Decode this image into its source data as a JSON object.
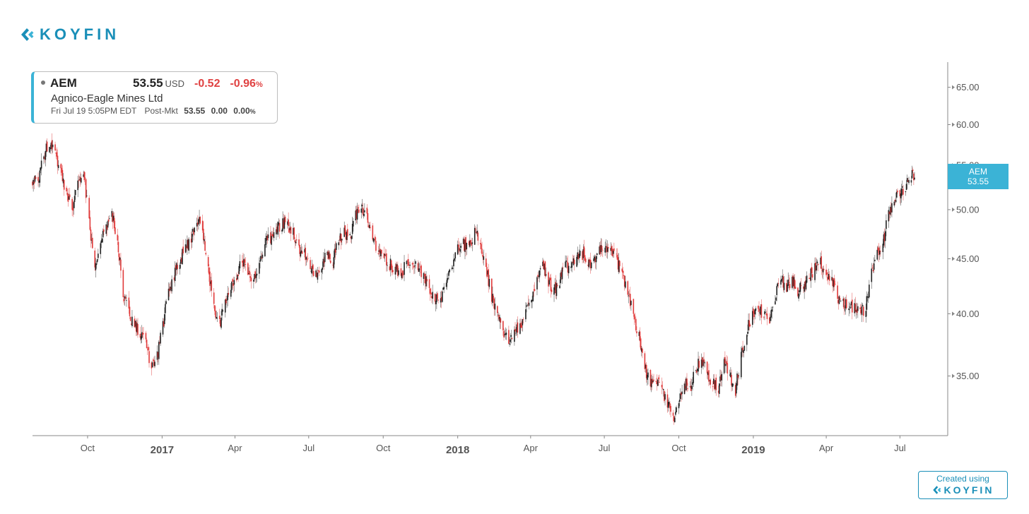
{
  "brand": {
    "name": "KOYFIN",
    "color": "#1a8fb8",
    "icon": "koyfin-chevron-icon"
  },
  "quote": {
    "ticker": "AEM",
    "price": "53.55",
    "currency": "USD",
    "change": "-0.52",
    "change_pct": "-0.96",
    "pct_unit": "%",
    "company": "Agnico-Eagle Mines Ltd",
    "timestamp": "Fri Jul 19 5:05PM EDT",
    "session_label": "Post-Mkt",
    "session_price": "53.55",
    "session_change": "0.00",
    "session_change_pct": "0.00",
    "down_color": "#e04242"
  },
  "footer": {
    "created_label": "Created using",
    "brand": "KOYFIN"
  },
  "chart_data": {
    "type": "candlestick",
    "series_name": "AEM",
    "last_label": {
      "ticker": "AEM",
      "value": "53.55",
      "color": "#3bb3d6"
    },
    "colors": {
      "up": "#222222",
      "down": "#e03a3a"
    },
    "y_scale": "log",
    "ylim": [
      30.8,
      68.6
    ],
    "y_ticks": [
      {
        "value": 35,
        "label": "35.00"
      },
      {
        "value": 40,
        "label": "40.00"
      },
      {
        "value": 45,
        "label": "45.00"
      },
      {
        "value": 50,
        "label": "50.00"
      },
      {
        "value": 55,
        "label": "55.00"
      },
      {
        "value": 60,
        "label": "60.00"
      },
      {
        "value": 65,
        "label": "65.00"
      }
    ],
    "xlim": [
      "2016-07-25",
      "2019-08-29"
    ],
    "x_ticks": [
      {
        "date": "2016-10-01",
        "label": "Oct",
        "bold": false
      },
      {
        "date": "2017-01-01",
        "label": "2017",
        "bold": true
      },
      {
        "date": "2017-04-01",
        "label": "Apr",
        "bold": false
      },
      {
        "date": "2017-07-01",
        "label": "Jul",
        "bold": false
      },
      {
        "date": "2017-10-01",
        "label": "Oct",
        "bold": false
      },
      {
        "date": "2018-01-01",
        "label": "2018",
        "bold": true
      },
      {
        "date": "2018-04-01",
        "label": "Apr",
        "bold": false
      },
      {
        "date": "2018-07-01",
        "label": "Jul",
        "bold": false
      },
      {
        "date": "2018-10-01",
        "label": "Oct",
        "bold": false
      },
      {
        "date": "2019-01-01",
        "label": "2019",
        "bold": true
      },
      {
        "date": "2019-04-01",
        "label": "Apr",
        "bold": false
      },
      {
        "date": "2019-07-01",
        "label": "Jul",
        "bold": false
      }
    ],
    "grid": false,
    "close_path": [
      [
        "2016-07-25",
        53.0
      ],
      [
        "2016-08-01",
        53.5
      ],
      [
        "2016-08-08",
        56.0
      ],
      [
        "2016-08-15",
        58.0
      ],
      [
        "2016-08-22",
        56.5
      ],
      [
        "2016-08-29",
        54.0
      ],
      [
        "2016-09-05",
        52.0
      ],
      [
        "2016-09-12",
        50.0
      ],
      [
        "2016-09-19",
        53.0
      ],
      [
        "2016-09-26",
        54.5
      ],
      [
        "2016-10-03",
        48.5
      ],
      [
        "2016-10-10",
        44.0
      ],
      [
        "2016-10-17",
        46.5
      ],
      [
        "2016-10-24",
        48.0
      ],
      [
        "2016-10-31",
        49.5
      ],
      [
        "2016-11-07",
        47.0
      ],
      [
        "2016-11-14",
        41.5
      ],
      [
        "2016-11-21",
        40.0
      ],
      [
        "2016-11-28",
        39.0
      ],
      [
        "2016-12-05",
        38.5
      ],
      [
        "2016-12-12",
        37.5
      ],
      [
        "2016-12-19",
        35.5
      ],
      [
        "2016-12-26",
        36.5
      ],
      [
        "2017-01-02",
        39.0
      ],
      [
        "2017-01-09",
        42.0
      ],
      [
        "2017-01-16",
        43.5
      ],
      [
        "2017-01-23",
        45.0
      ],
      [
        "2017-01-30",
        46.0
      ],
      [
        "2017-02-06",
        47.0
      ],
      [
        "2017-02-13",
        49.0
      ],
      [
        "2017-02-20",
        48.0
      ],
      [
        "2017-02-27",
        44.0
      ],
      [
        "2017-03-06",
        40.5
      ],
      [
        "2017-03-13",
        39.0
      ],
      [
        "2017-03-20",
        41.0
      ],
      [
        "2017-03-27",
        42.5
      ],
      [
        "2017-04-03",
        43.5
      ],
      [
        "2017-04-10",
        45.0
      ],
      [
        "2017-04-17",
        44.0
      ],
      [
        "2017-04-24",
        43.0
      ],
      [
        "2017-05-01",
        44.5
      ],
      [
        "2017-05-08",
        46.5
      ],
      [
        "2017-05-15",
        47.0
      ],
      [
        "2017-05-22",
        48.0
      ],
      [
        "2017-05-29",
        48.5
      ],
      [
        "2017-06-05",
        48.5
      ],
      [
        "2017-06-12",
        47.5
      ],
      [
        "2017-06-19",
        46.0
      ],
      [
        "2017-06-26",
        45.5
      ],
      [
        "2017-07-03",
        44.0
      ],
      [
        "2017-07-10",
        43.5
      ],
      [
        "2017-07-17",
        44.5
      ],
      [
        "2017-07-24",
        45.5
      ],
      [
        "2017-07-31",
        45.0
      ],
      [
        "2017-08-07",
        47.0
      ],
      [
        "2017-08-14",
        47.5
      ],
      [
        "2017-08-21",
        47.0
      ],
      [
        "2017-08-28",
        49.5
      ],
      [
        "2017-09-04",
        50.5
      ],
      [
        "2017-09-11",
        49.0
      ],
      [
        "2017-09-18",
        47.0
      ],
      [
        "2017-09-25",
        45.5
      ],
      [
        "2017-10-02",
        45.0
      ],
      [
        "2017-10-09",
        44.5
      ],
      [
        "2017-10-16",
        44.0
      ],
      [
        "2017-10-23",
        43.5
      ],
      [
        "2017-10-30",
        44.5
      ],
      [
        "2017-11-06",
        44.5
      ],
      [
        "2017-11-13",
        44.0
      ],
      [
        "2017-11-20",
        43.5
      ],
      [
        "2017-11-27",
        42.5
      ],
      [
        "2017-12-04",
        41.0
      ],
      [
        "2017-12-11",
        41.5
      ],
      [
        "2017-12-18",
        43.0
      ],
      [
        "2017-12-25",
        44.5
      ],
      [
        "2018-01-01",
        46.0
      ],
      [
        "2018-01-08",
        46.5
      ],
      [
        "2018-01-15",
        46.0
      ],
      [
        "2018-01-22",
        48.0
      ],
      [
        "2018-01-29",
        46.5
      ],
      [
        "2018-02-05",
        44.0
      ],
      [
        "2018-02-12",
        41.5
      ],
      [
        "2018-02-19",
        40.0
      ],
      [
        "2018-02-26",
        38.5
      ],
      [
        "2018-03-05",
        37.5
      ],
      [
        "2018-03-12",
        38.5
      ],
      [
        "2018-03-19",
        39.0
      ],
      [
        "2018-03-26",
        40.0
      ],
      [
        "2018-04-02",
        41.5
      ],
      [
        "2018-04-09",
        43.0
      ],
      [
        "2018-04-16",
        44.5
      ],
      [
        "2018-04-23",
        43.0
      ],
      [
        "2018-04-30",
        42.0
      ],
      [
        "2018-05-07",
        43.0
      ],
      [
        "2018-05-14",
        44.5
      ],
      [
        "2018-05-21",
        44.0
      ],
      [
        "2018-05-28",
        45.0
      ],
      [
        "2018-06-04",
        45.5
      ],
      [
        "2018-06-11",
        44.5
      ],
      [
        "2018-06-18",
        45.0
      ],
      [
        "2018-06-25",
        46.0
      ],
      [
        "2018-07-02",
        46.5
      ],
      [
        "2018-07-09",
        45.5
      ],
      [
        "2018-07-16",
        45.0
      ],
      [
        "2018-07-23",
        43.5
      ],
      [
        "2018-07-30",
        42.0
      ],
      [
        "2018-08-06",
        40.0
      ],
      [
        "2018-08-13",
        38.0
      ],
      [
        "2018-08-20",
        35.5
      ],
      [
        "2018-08-27",
        34.5
      ],
      [
        "2018-09-03",
        35.0
      ],
      [
        "2018-09-10",
        34.0
      ],
      [
        "2018-09-17",
        33.0
      ],
      [
        "2018-09-24",
        32.0
      ],
      [
        "2018-10-01",
        33.0
      ],
      [
        "2018-10-08",
        34.5
      ],
      [
        "2018-10-15",
        34.0
      ],
      [
        "2018-10-22",
        35.5
      ],
      [
        "2018-10-29",
        36.5
      ],
      [
        "2018-11-05",
        35.0
      ],
      [
        "2018-11-12",
        34.5
      ],
      [
        "2018-11-19",
        34.0
      ],
      [
        "2018-11-26",
        36.0
      ],
      [
        "2018-12-03",
        35.0
      ],
      [
        "2018-12-10",
        34.0
      ],
      [
        "2018-12-17",
        36.5
      ],
      [
        "2018-12-24",
        38.5
      ],
      [
        "2018-12-31",
        40.0
      ],
      [
        "2019-01-07",
        40.5
      ],
      [
        "2019-01-14",
        40.0
      ],
      [
        "2019-01-21",
        39.5
      ],
      [
        "2019-01-28",
        41.5
      ],
      [
        "2019-02-04",
        43.0
      ],
      [
        "2019-02-11",
        42.5
      ],
      [
        "2019-02-18",
        43.0
      ],
      [
        "2019-02-25",
        42.0
      ],
      [
        "2019-03-04",
        42.5
      ],
      [
        "2019-03-11",
        43.5
      ],
      [
        "2019-03-18",
        44.0
      ],
      [
        "2019-03-25",
        44.5
      ],
      [
        "2019-04-01",
        43.5
      ],
      [
        "2019-04-08",
        43.0
      ],
      [
        "2019-04-15",
        41.5
      ],
      [
        "2019-04-22",
        41.0
      ],
      [
        "2019-04-29",
        40.5
      ],
      [
        "2019-05-06",
        40.5
      ],
      [
        "2019-05-13",
        40.0
      ],
      [
        "2019-05-20",
        40.5
      ],
      [
        "2019-05-27",
        44.0
      ],
      [
        "2019-06-03",
        45.5
      ],
      [
        "2019-06-10",
        46.5
      ],
      [
        "2019-06-17",
        49.5
      ],
      [
        "2019-06-24",
        51.0
      ],
      [
        "2019-07-01",
        52.0
      ],
      [
        "2019-07-08",
        52.5
      ],
      [
        "2019-07-15",
        54.0
      ],
      [
        "2019-07-19",
        53.55
      ]
    ]
  }
}
